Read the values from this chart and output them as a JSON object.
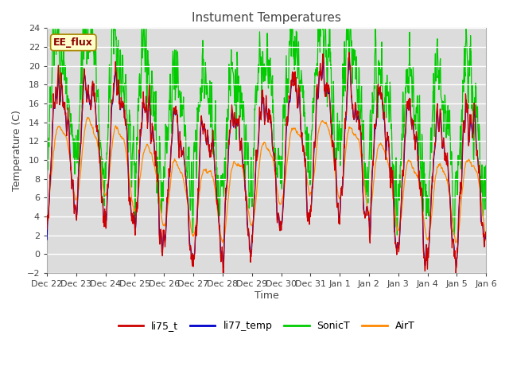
{
  "title": "Instument Temperatures",
  "xlabel": "Time",
  "ylabel": "Temperature (C)",
  "ylim": [
    -2,
    24
  ],
  "yticks": [
    -2,
    0,
    2,
    4,
    6,
    8,
    10,
    12,
    14,
    16,
    18,
    20,
    22,
    24
  ],
  "x_tick_labels": [
    "Dec 22",
    "Dec 23",
    "Dec 24",
    "Dec 25",
    "Dec 26",
    "Dec 27",
    "Dec 28",
    "Dec 29",
    "Dec 30",
    "Dec 31",
    "Jan 1",
    "Jan 2",
    "Jan 3",
    "Jan 4",
    "Jan 5",
    "Jan 6"
  ],
  "colors": {
    "li75_t": "#cc0000",
    "li77_temp": "#0000cc",
    "SonicT": "#00cc00",
    "AirT": "#ff8800"
  },
  "annotation_text": "EE_flux",
  "bg_color": "#ffffff",
  "plot_bg_color": "#dcdcdc",
  "grid_color": "#ffffff",
  "n_points": 1500,
  "seed": 7
}
